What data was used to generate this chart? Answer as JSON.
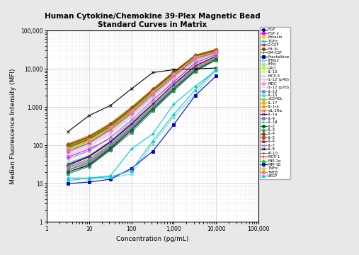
{
  "title": "Human Cytokine/Chemokine 39-Plex Magnetic Bead\nStandard Curves in Matrix",
  "xlabel": "Concentration (pg/mL)",
  "ylabel": "Median Fluorescence Intensity (MFI)",
  "x_conc": [
    3.2,
    10,
    32,
    100,
    320,
    1000,
    3200,
    10000
  ],
  "series": [
    {
      "name": "EGF",
      "color": "#00008B",
      "marker": "o",
      "y": [
        30,
        50,
        120,
        350,
        1200,
        4000,
        12000,
        22000
      ]
    },
    {
      "name": "FGF-2",
      "color": "#FF00FF",
      "marker": "s",
      "y": [
        50,
        80,
        150,
        400,
        1400,
        4500,
        14000,
        24000
      ]
    },
    {
      "name": "Eotaxin",
      "color": "#FFD700",
      "marker": "D",
      "y": [
        80,
        130,
        250,
        700,
        2200,
        6000,
        18000,
        27000
      ]
    },
    {
      "name": "TGFα",
      "color": "#00CED1",
      "marker": "*",
      "y": [
        12,
        14,
        16,
        80,
        200,
        1200,
        3500,
        9000
      ]
    },
    {
      "name": "G-CSF",
      "color": "#8B0000",
      "marker": "x",
      "y": [
        100,
        160,
        350,
        900,
        2800,
        8000,
        22000,
        32000
      ]
    },
    {
      "name": "Flt-3L",
      "color": "#8B4513",
      "marker": "o",
      "y": [
        100,
        160,
        350,
        900,
        2800,
        8000,
        22000,
        30000
      ]
    },
    {
      "name": "GM-CSF",
      "color": "#228B22",
      "marker": "+",
      "y": [
        90,
        150,
        320,
        850,
        2600,
        7500,
        21000,
        29000
      ]
    },
    {
      "name": "Fractalkine",
      "color": "#000080",
      "marker": "s",
      "y": [
        20,
        30,
        80,
        250,
        900,
        3000,
        9000,
        18000
      ]
    },
    {
      "name": "IFNα2",
      "color": "#87CEEB",
      "marker": "^",
      "y": [
        14,
        13,
        14,
        18,
        110,
        550,
        2200,
        9500
      ]
    },
    {
      "name": "IFNγ",
      "color": "#90EE90",
      "marker": "s",
      "y": [
        70,
        120,
        280,
        750,
        2400,
        7000,
        20000,
        28000
      ]
    },
    {
      "name": "GRO",
      "color": "#ADFF2F",
      "marker": "D",
      "y": [
        85,
        140,
        300,
        800,
        2500,
        7200,
        20500,
        28500
      ]
    },
    {
      "name": "IL-10",
      "color": "#EEEE88",
      "marker": "o",
      "y": [
        75,
        125,
        270,
        730,
        2300,
        6800,
        19500,
        27500
      ]
    },
    {
      "name": "MCP-3",
      "color": "#ADD8E6",
      "marker": "x",
      "y": [
        55,
        90,
        200,
        550,
        1800,
        5500,
        16000,
        25000
      ]
    },
    {
      "name": "IL-12 (p40)",
      "color": "#FFB6C1",
      "marker": "x",
      "y": [
        60,
        100,
        220,
        600,
        1900,
        5700,
        16500,
        25500
      ]
    },
    {
      "name": "MDC",
      "color": "#DDA0DD",
      "marker": "D",
      "y": [
        65,
        110,
        240,
        650,
        2000,
        6000,
        17000,
        26000
      ]
    },
    {
      "name": "IL-12 (p70)",
      "color": "#FFDAB9",
      "marker": "+",
      "y": [
        40,
        65,
        150,
        420,
        1400,
        4200,
        13000,
        22000
      ]
    },
    {
      "name": "IL-13",
      "color": "#6495ED",
      "marker": "s",
      "y": [
        25,
        40,
        100,
        300,
        1000,
        3300,
        10000,
        19000
      ]
    },
    {
      "name": "IL-15",
      "color": "#40E0D0",
      "marker": "^",
      "y": [
        35,
        55,
        130,
        380,
        1250,
        3800,
        11000,
        20000
      ]
    },
    {
      "name": "sCD40L",
      "color": "#9ACD32",
      "marker": "o",
      "y": [
        95,
        155,
        330,
        870,
        2700,
        7700,
        21500,
        30000
      ]
    },
    {
      "name": "IL-17",
      "color": "#FFA500",
      "marker": "D",
      "y": [
        28,
        45,
        110,
        320,
        1100,
        3500,
        11000,
        21000
      ]
    },
    {
      "name": "IL-1ra",
      "color": "#FF8C00",
      "marker": "^",
      "y": [
        110,
        180,
        380,
        1000,
        3000,
        8500,
        23000,
        33000
      ]
    },
    {
      "name": "sIL-2Rα",
      "color": "#FF4500",
      "marker": "x",
      "y": [
        22,
        35,
        90,
        270,
        950,
        3100,
        9500,
        18500
      ]
    },
    {
      "name": "IL-1α",
      "color": "#4B0082",
      "marker": "x",
      "y": [
        32,
        52,
        125,
        360,
        1200,
        3900,
        12000,
        21500
      ]
    },
    {
      "name": "IL-9",
      "color": "#888888",
      "marker": "s",
      "y": [
        27,
        42,
        105,
        310,
        1050,
        3400,
        10500,
        20000
      ]
    },
    {
      "name": "IL-1β",
      "color": "#1E90FF",
      "marker": "+",
      "y": [
        23,
        37,
        95,
        280,
        950,
        3100,
        9500,
        18000
      ]
    },
    {
      "name": "IL-2",
      "color": "#006400",
      "marker": "o",
      "y": [
        20,
        32,
        85,
        250,
        880,
        2900,
        9000,
        17500
      ]
    },
    {
      "name": "IL-3",
      "color": "#2E8B57",
      "marker": "^",
      "y": [
        18,
        28,
        75,
        220,
        800,
        2700,
        8500,
        17000
      ]
    },
    {
      "name": "IL-4",
      "color": "#8B4513",
      "marker": "D",
      "y": [
        105,
        170,
        360,
        950,
        2900,
        8200,
        22500,
        31000
      ]
    },
    {
      "name": "IL-5",
      "color": "#A0522D",
      "marker": "s",
      "y": [
        100,
        165,
        345,
        920,
        2850,
        8000,
        22000,
        30500
      ]
    },
    {
      "name": "IL-6",
      "color": "#B22222",
      "marker": "^",
      "y": [
        90,
        148,
        315,
        840,
        2650,
        7600,
        21000,
        29500
      ]
    },
    {
      "name": "IL-7",
      "color": "#9370DB",
      "marker": "x",
      "y": [
        45,
        72,
        165,
        460,
        1550,
        4700,
        14500,
        23500
      ]
    },
    {
      "name": "IL-8",
      "color": "#000000",
      "marker": "x",
      "y": [
        230,
        600,
        1100,
        3000,
        8000,
        9500,
        10000,
        10500
      ]
    },
    {
      "name": "IP-10",
      "color": "#696969",
      "marker": ".",
      "y": [
        70,
        115,
        260,
        700,
        2200,
        6500,
        18500,
        27000
      ]
    },
    {
      "name": "MCP-1",
      "color": "#FF0000",
      "marker": "+",
      "y": [
        85,
        140,
        300,
        800,
        2500,
        7200,
        20500,
        28500
      ]
    },
    {
      "name": "MIP-1α",
      "color": "#00CC00",
      "marker": "^",
      "y": [
        88,
        145,
        305,
        820,
        2550,
        7300,
        20800,
        29000
      ]
    },
    {
      "name": "MIP-1β",
      "color": "#0000CD",
      "marker": "s",
      "y": [
        10,
        11,
        13,
        25,
        70,
        350,
        2000,
        6500
      ]
    },
    {
      "name": "TNFα",
      "color": "#DDDD00",
      "marker": "D",
      "y": [
        82,
        135,
        290,
        780,
        2450,
        7100,
        20200,
        28200
      ]
    },
    {
      "name": "TNFβ",
      "color": "#FF69B4",
      "marker": "s",
      "y": [
        78,
        128,
        275,
        740,
        2350,
        6900,
        19800,
        27800
      ]
    },
    {
      "name": "VEGF",
      "color": "#00CCCC",
      "marker": "^",
      "y": [
        14,
        14,
        15,
        22,
        130,
        650,
        2800,
        9800
      ]
    }
  ],
  "bg_color": "#e8e8e8",
  "plot_bg": "#ffffff",
  "xlim": [
    1,
    100000
  ],
  "ylim": [
    1,
    100000
  ],
  "figsize": [
    5.07,
    3.6
  ],
  "dpi": 100
}
